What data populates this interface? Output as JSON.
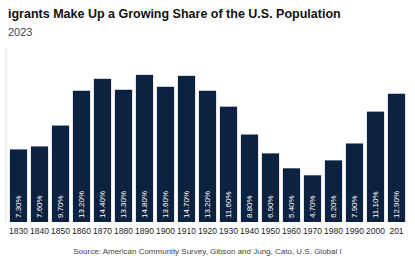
{
  "chart_data": {
    "type": "bar",
    "title": "igrants Make Up a Growing Share of the U.S. Population",
    "subtitle": "2023",
    "source": "Source: American Community Survey, Gibson and Jung, Cato, U.S. Global I",
    "categories": [
      "1830",
      "1840",
      "1850",
      "1860",
      "1870",
      "1880",
      "1890",
      "1900",
      "1910",
      "1920",
      "1930",
      "1940",
      "1950",
      "1960",
      "1970",
      "1980",
      "1990",
      "2000",
      "201"
    ],
    "values": [
      7.3,
      7.6,
      9.7,
      13.2,
      14.4,
      13.3,
      14.8,
      13.6,
      14.7,
      13.2,
      11.6,
      8.8,
      6.9,
      5.4,
      4.7,
      6.2,
      7.9,
      11.1,
      12.9
    ],
    "value_labels": [
      "7.30%",
      "7.60%",
      "9.70%",
      "13.20%",
      "14.40%",
      "13.30%",
      "14.80%",
      "13.60%",
      "14.70%",
      "13.20%",
      "11.60%",
      "8.80%",
      "6.90%",
      "5.40%",
      "4.70%",
      "6.20%",
      "7.90%",
      "11.10%",
      "12.90%"
    ],
    "data_labels": true,
    "color": "#0d2240",
    "ylim": [
      0,
      17.5
    ],
    "tick_labels": "x",
    "grid": false
  }
}
